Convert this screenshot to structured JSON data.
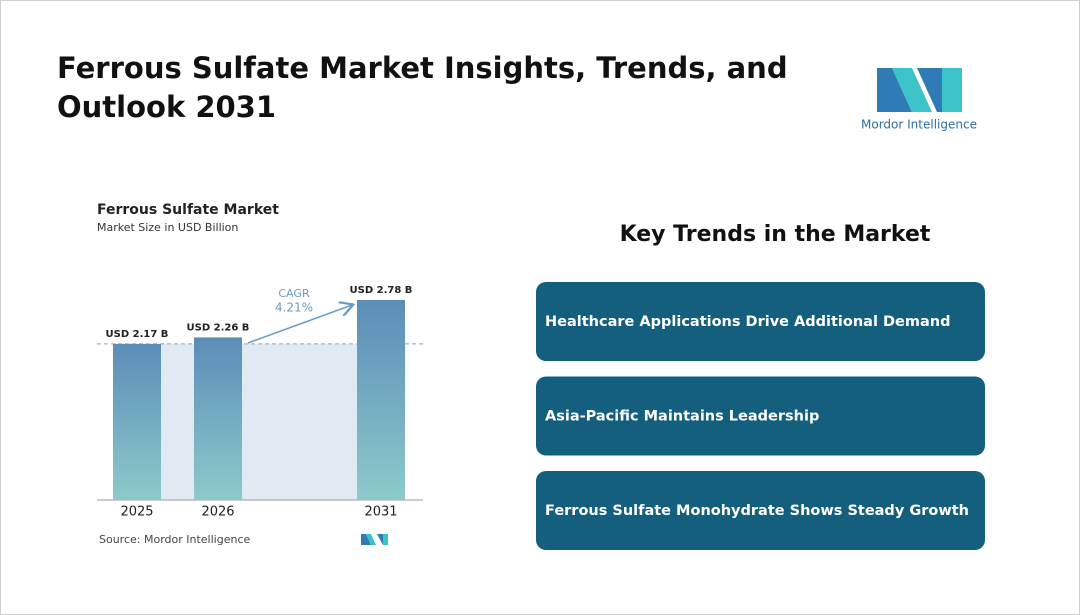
{
  "header": {
    "title": "Ferrous Sulfate Market Insights, Trends, and Outlook 2031",
    "logo_text": "Mordor Intelligence"
  },
  "chart_data": {
    "type": "bar",
    "title": "Ferrous Sulfate Market",
    "subtitle": "Market Size in USD Billion",
    "categories": [
      "2025",
      "2026",
      "2031"
    ],
    "values": [
      2.17,
      2.26,
      2.78
    ],
    "value_labels": [
      "USD 2.17 B",
      "USD 2.26 B",
      "USD 2.78 B"
    ],
    "annotations": [
      "CAGR",
      "4.21%"
    ],
    "source": "Source: Mordor Intelligence"
  },
  "trends": {
    "title": "Key Trends in the Market",
    "items": [
      "Healthcare Applications Drive Additional Demand",
      "Asia-Pacific Maintains Leadership",
      "Ferrous Sulfate Monohydrate Shows Steady Growth"
    ]
  }
}
